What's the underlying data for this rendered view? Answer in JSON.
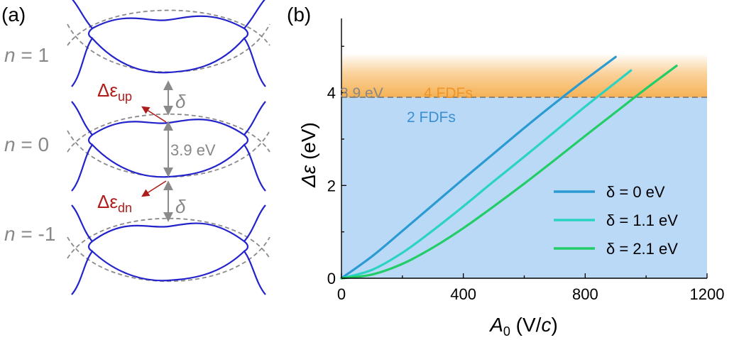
{
  "panel_a": {
    "label": "(a)",
    "levels": [
      {
        "prefix": "n",
        "eq": " = ",
        "value": "1"
      },
      {
        "prefix": "n",
        "eq": " = ",
        "value": "0"
      },
      {
        "prefix": "n",
        "eq": " = ",
        "value": "-1"
      }
    ],
    "gap_symbol": "δ",
    "gap_energy": "3.9 eV",
    "delta_up": {
      "base": "Δε",
      "sub": "up"
    },
    "delta_dn": {
      "base": "Δε",
      "sub": "dn"
    },
    "colors": {
      "band": "#2323cc",
      "dashed": "#8a8a8a",
      "arrow": "#8a8a8a",
      "annot": "#b01c1c",
      "label": "#888888"
    }
  },
  "panel_b": {
    "label": "(b)",
    "threshold_label": "3.9 eV",
    "region_upper_label": "4 FDFs",
    "region_lower_label": "2 FDFs",
    "ylabel": {
      "symbol": "Δε",
      "unit": " (eV)"
    },
    "xlabel": {
      "symbol": "A",
      "sub": "0",
      "unit_open": " (V/",
      "unit_c": "c",
      "unit_close": ")"
    },
    "legend_prefix": "δ",
    "colors": {
      "blue_region": "#b9d9f7",
      "orange_region": "#f5ae4c",
      "threshold": "#777777",
      "lower_text": "#3c8fd1",
      "upper_text": "#ee9428",
      "threshold_text": "#888888"
    }
  },
  "chart_data": {
    "type": "line",
    "xlabel": "A0 (V/c)",
    "ylabel": "Δε (eV)",
    "xlim": [
      0,
      1200
    ],
    "ylim": [
      0,
      5.6
    ],
    "xticks": [
      0,
      400,
      800,
      1200
    ],
    "yticks": [
      0,
      2,
      4
    ],
    "threshold": 3.9,
    "legend_position": "bottom-right",
    "grid": false,
    "series": [
      {
        "name": "δ = 0 eV",
        "color": "#2a9ad2",
        "x": [
          0,
          100,
          200,
          300,
          400,
          500,
          600,
          700,
          800,
          900
        ],
        "y": [
          0,
          0.47,
          1.02,
          1.58,
          2.14,
          2.69,
          3.24,
          3.77,
          4.28,
          4.77
        ]
      },
      {
        "name": "δ = 1.1 eV",
        "color": "#2ad3c2",
        "x": [
          0,
          100,
          200,
          300,
          400,
          500,
          600,
          700,
          800,
          900,
          950
        ],
        "y": [
          0,
          0.18,
          0.55,
          1.03,
          1.55,
          2.09,
          2.62,
          3.16,
          3.7,
          4.22,
          4.48
        ]
      },
      {
        "name": "δ = 2.1 eV",
        "color": "#22cc66",
        "x": [
          0,
          100,
          200,
          300,
          400,
          500,
          600,
          700,
          800,
          900,
          1000,
          1100
        ],
        "y": [
          0,
          0.08,
          0.31,
          0.66,
          1.08,
          1.55,
          2.04,
          2.55,
          3.07,
          3.58,
          4.09,
          4.58
        ]
      }
    ]
  }
}
